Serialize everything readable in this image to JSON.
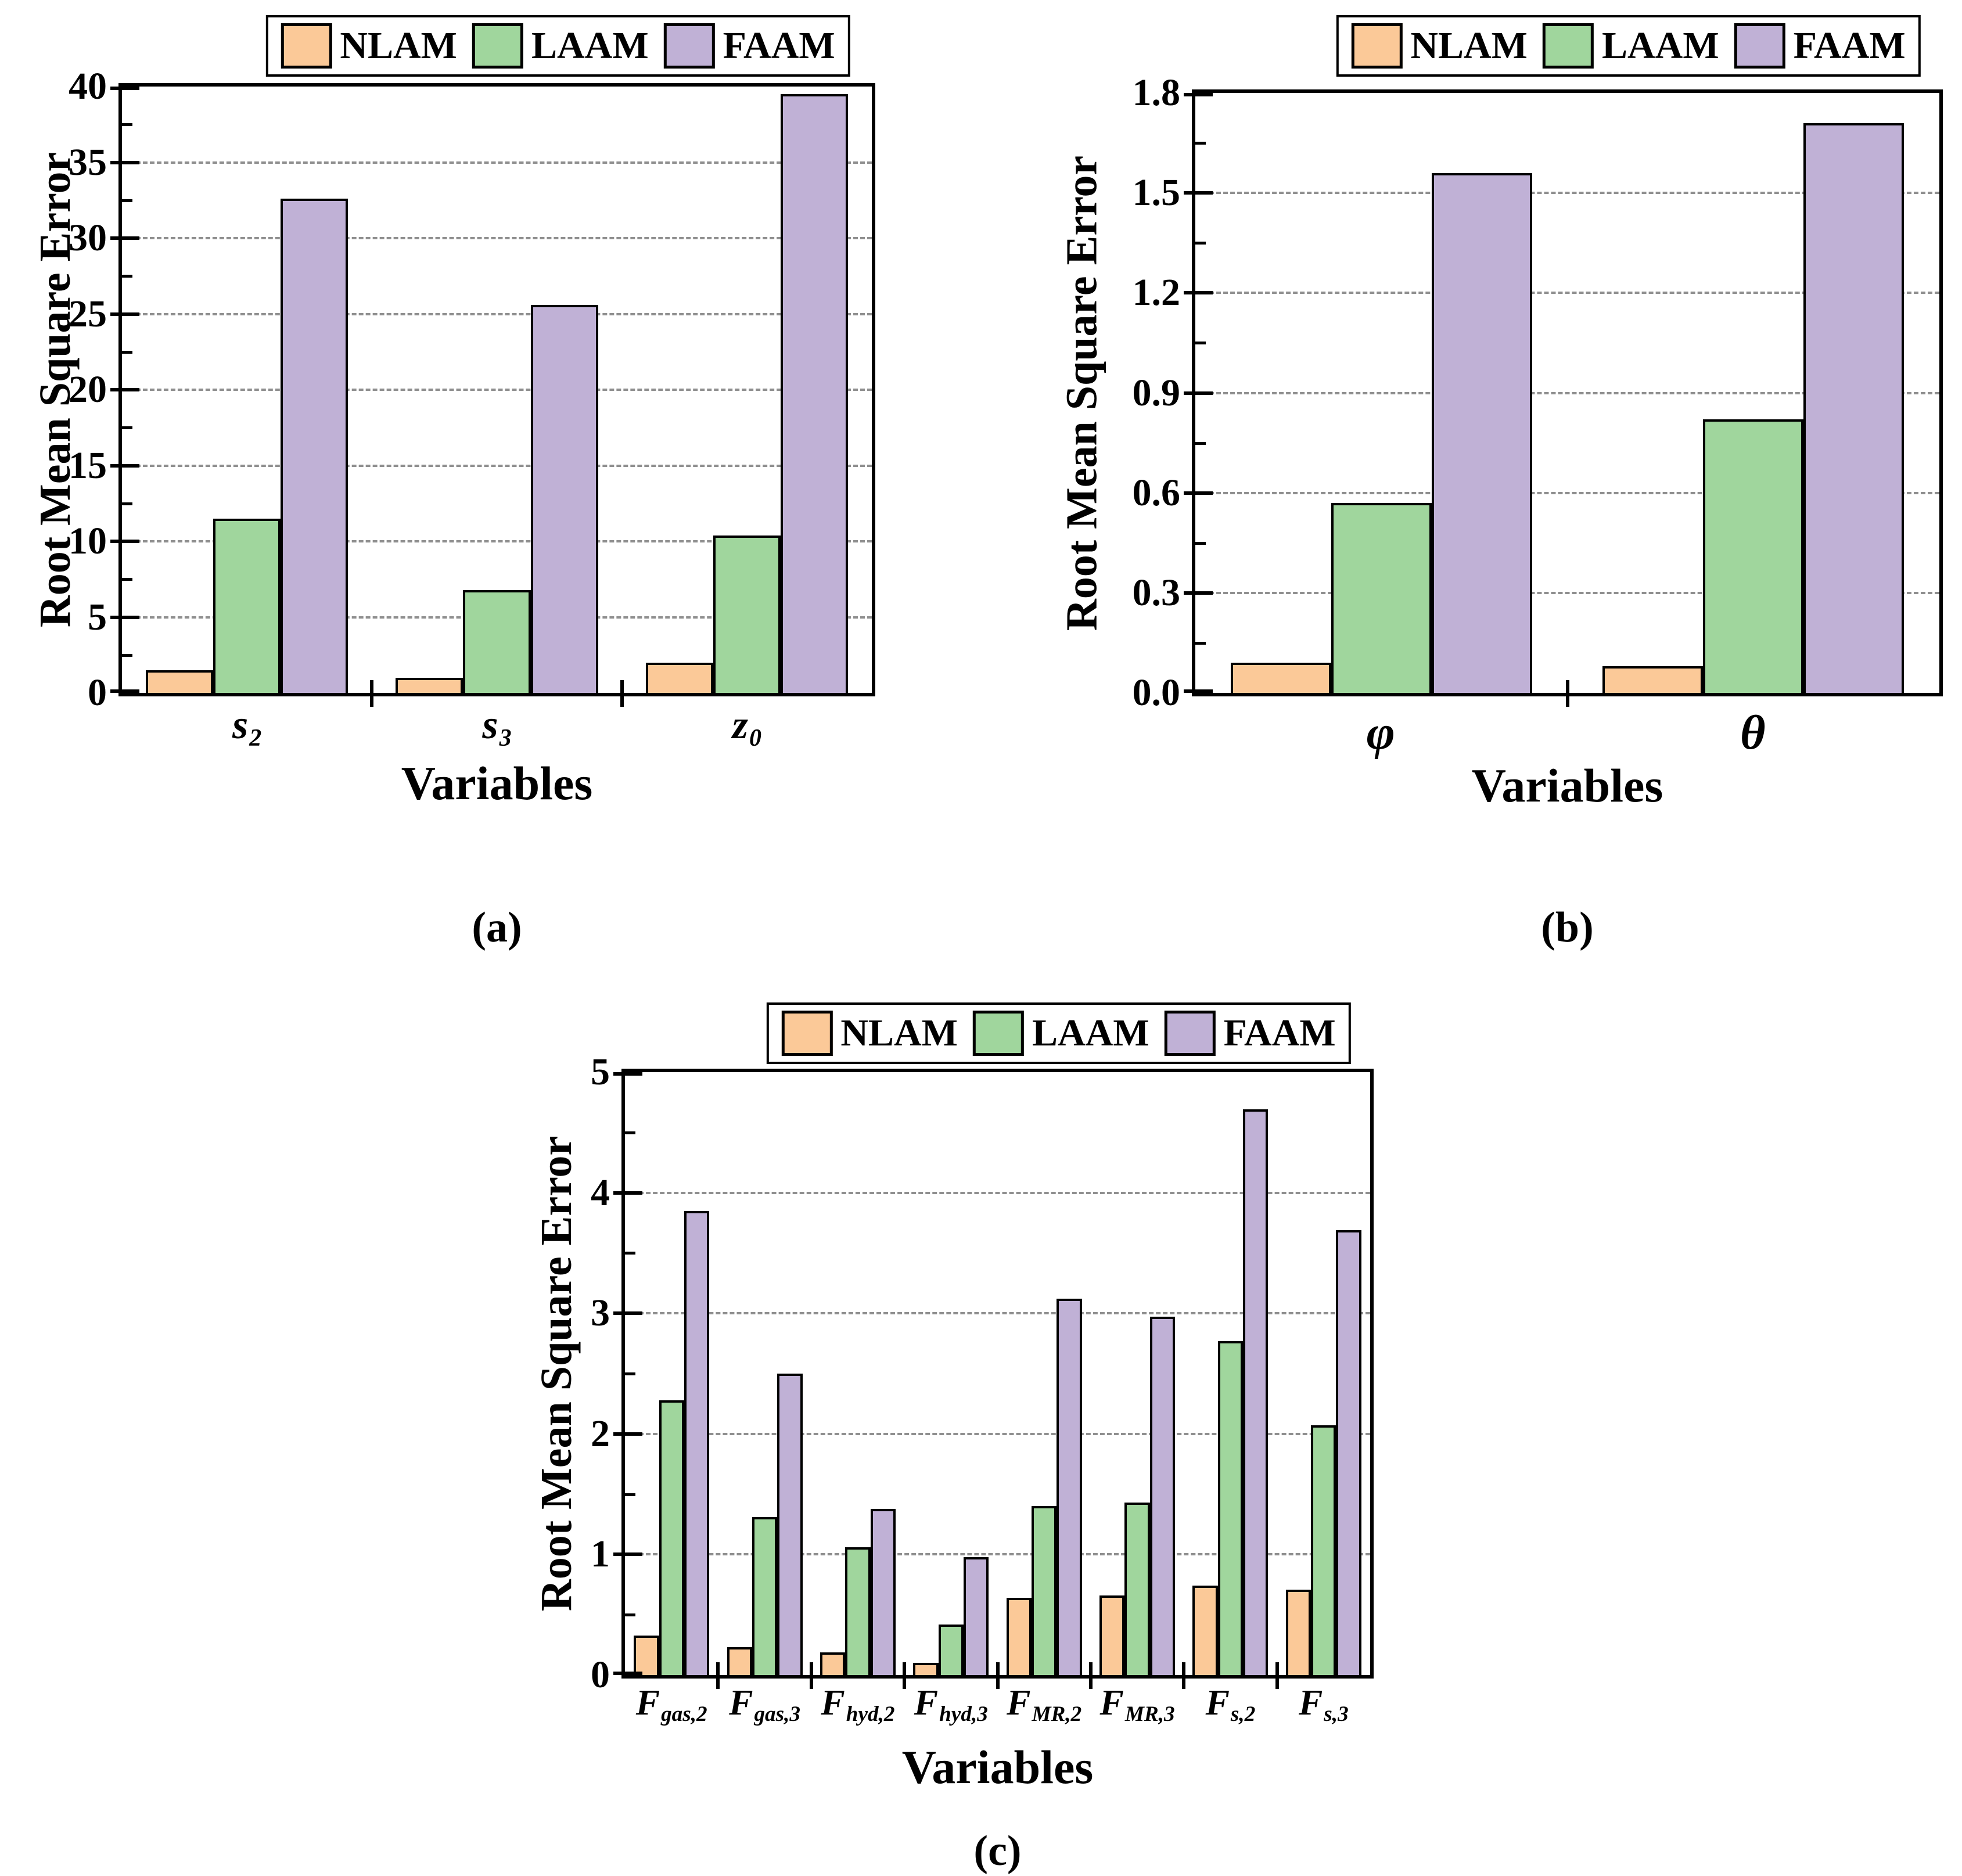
{
  "figure": {
    "background": "#FFFFFF",
    "frame_color": "#000000",
    "grid_color": "#8F8F8F",
    "series_colors": {
      "NLAM": "#FBC998",
      "LAAM": "#A0D69D",
      "FAAM": "#C0B1D6"
    }
  },
  "chart_data": [
    {
      "id": "a",
      "type": "bar",
      "caption": "(a)",
      "xlabel": "Variables",
      "ylabel": "Root Mean Square Error",
      "ylim": [
        0,
        40
      ],
      "ytick_step": 5,
      "yticks": [
        "0",
        "5",
        "10",
        "15",
        "20",
        "25",
        "30",
        "35",
        "40"
      ],
      "grid": "horizontal-dashed",
      "legend_position": "top",
      "categories": [
        {
          "base": "s",
          "sub": "2"
        },
        {
          "base": "s",
          "sub": "3"
        },
        {
          "base": "z",
          "sub": "0"
        }
      ],
      "series": [
        {
          "name": "NLAM",
          "color": "#FBC998",
          "values": [
            1.5,
            1.0,
            2.0
          ]
        },
        {
          "name": "LAAM",
          "color": "#A0D69D",
          "values": [
            11.5,
            6.8,
            10.4
          ]
        },
        {
          "name": "FAAM",
          "color": "#C0B1D6",
          "values": [
            32.6,
            25.6,
            39.5
          ]
        }
      ]
    },
    {
      "id": "b",
      "type": "bar",
      "caption": "(b)",
      "xlabel": "Variables",
      "ylabel": "Root Mean Square Error",
      "ylim": [
        0,
        1.8
      ],
      "ytick_step": 0.3,
      "yticks": [
        "0.0",
        "0.3",
        "0.6",
        "0.9",
        "1.2",
        "1.5",
        "1.8"
      ],
      "grid": "horizontal-dashed",
      "legend_position": "top",
      "categories": [
        {
          "base": "φ",
          "sub": ""
        },
        {
          "base": "θ",
          "sub": ""
        }
      ],
      "series": [
        {
          "name": "NLAM",
          "color": "#FBC998",
          "values": [
            0.09,
            0.08
          ]
        },
        {
          "name": "LAAM",
          "color": "#A0D69D",
          "values": [
            0.57,
            0.82
          ]
        },
        {
          "name": "FAAM",
          "color": "#C0B1D6",
          "values": [
            1.56,
            1.71
          ]
        }
      ]
    },
    {
      "id": "c",
      "type": "bar",
      "caption": "(c)",
      "xlabel": "Variables",
      "ylabel": "Root Mean Square Error",
      "ylim": [
        0,
        5
      ],
      "ytick_step": 1,
      "yticks": [
        "0",
        "1",
        "2",
        "3",
        "4",
        "5"
      ],
      "grid": "horizontal-dashed",
      "legend_position": "top",
      "categories": [
        {
          "base": "F",
          "sub": "gas,2"
        },
        {
          "base": "F",
          "sub": "gas,3"
        },
        {
          "base": "F",
          "sub": "hyd,2"
        },
        {
          "base": "F",
          "sub": "hyd,3"
        },
        {
          "base": "F",
          "sub": "MR,2"
        },
        {
          "base": "F",
          "sub": "MR,3"
        },
        {
          "base": "F",
          "sub": "s,2"
        },
        {
          "base": "F",
          "sub": "s,3"
        }
      ],
      "series": [
        {
          "name": "NLAM",
          "color": "#FBC998",
          "values": [
            0.33,
            0.23,
            0.19,
            0.1,
            0.64,
            0.66,
            0.74,
            0.71
          ]
        },
        {
          "name": "LAAM",
          "color": "#A0D69D",
          "values": [
            2.28,
            1.31,
            1.06,
            0.42,
            1.4,
            1.43,
            2.77,
            2.07
          ]
        },
        {
          "name": "FAAM",
          "color": "#C0B1D6",
          "values": [
            3.85,
            2.5,
            1.38,
            0.98,
            3.12,
            2.97,
            4.69,
            3.69
          ]
        }
      ]
    }
  ]
}
